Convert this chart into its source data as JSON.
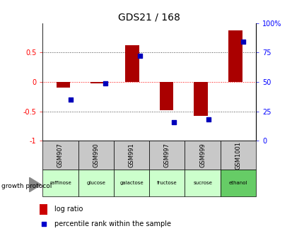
{
  "title": "GDS21 / 168",
  "samples": [
    "GSM907",
    "GSM990",
    "GSM991",
    "GSM997",
    "GSM999",
    "GSM1001"
  ],
  "protocols": [
    "raffinose",
    "glucose",
    "galactose",
    "fructose",
    "sucrose",
    "ethanol"
  ],
  "log_ratio": [
    -0.1,
    -0.02,
    0.63,
    -0.48,
    -0.58,
    0.88
  ],
  "percentile_rank": [
    35,
    49,
    72,
    16,
    18,
    84
  ],
  "ylim_left": [
    -1.0,
    1.0
  ],
  "ylim_right": [
    0,
    100
  ],
  "yticks_left": [
    -1,
    -0.5,
    0,
    0.5
  ],
  "yticks_right": [
    0,
    25,
    50,
    75,
    100
  ],
  "bar_color": "#aa0000",
  "dot_color": "#0000bb",
  "bar_width": 0.4,
  "dot_size": 22,
  "prot_colors": [
    "#ccffcc",
    "#ccffcc",
    "#ccffcc",
    "#ccffcc",
    "#ccffcc",
    "#66cc66"
  ],
  "gsm_bg": "#c8c8c8",
  "title_fontsize": 10,
  "tick_fontsize": 7,
  "legend_log_color": "#cc0000",
  "legend_pct_color": "#0000cc"
}
